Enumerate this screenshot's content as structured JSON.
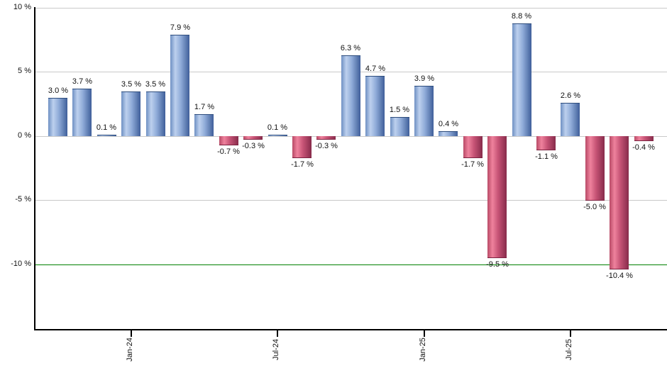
{
  "chart_data": {
    "type": "bar",
    "title": "",
    "xlabel": "",
    "ylabel": "",
    "values": [
      3.0,
      3.7,
      0.1,
      3.5,
      3.5,
      7.9,
      1.7,
      -0.7,
      -0.3,
      0.1,
      -1.7,
      -0.3,
      6.3,
      4.7,
      1.5,
      3.9,
      0.4,
      -1.7,
      -9.5,
      8.8,
      -1.1,
      2.6,
      -5.0,
      -10.4,
      -0.4
    ],
    "bar_labels": [
      "3.0 %",
      "3.7 %",
      "0.1 %",
      "3.5 %",
      "3.5 %",
      "7.9 %",
      "1.7 %",
      "-0.7 %",
      "-0.3 %",
      "0.1 %",
      "-1.7 %",
      "-0.3 %",
      "6.3 %",
      "4.7 %",
      "1.5 %",
      "3.9 %",
      "0.4 %",
      "-1.7 %",
      "-9.5 %",
      "8.8 %",
      "-1.1 %",
      "2.6 %",
      "-5.0 %",
      "-10.4 %",
      "-0.4 %"
    ],
    "x_ticks": [
      {
        "label": "Jan-24",
        "bar_index": 3
      },
      {
        "label": "Jul-24",
        "bar_index": 9
      },
      {
        "label": "Jan-25",
        "bar_index": 15
      },
      {
        "label": "Jul-25",
        "bar_index": 21
      }
    ],
    "y_ticks": [
      {
        "label": "10 %",
        "value": 10
      },
      {
        "label": "5 %",
        "value": 5
      },
      {
        "label": "0 %",
        "value": 0
      },
      {
        "label": "-5 %",
        "value": -5
      },
      {
        "label": "-10 %",
        "value": -10
      }
    ],
    "ylim": [
      -15.1,
      10.6
    ],
    "grid": true,
    "legend": "none",
    "reference_line": {
      "value": -10,
      "color": "#008000"
    },
    "colors": {
      "positive_bar": "#7b9ccb",
      "positive_gradient": [
        "#6e90c3",
        "#bdd0ee",
        "#8fabd8",
        "#3f5f9a"
      ],
      "negative_bar": "#cc5577",
      "negative_gradient": [
        "#b84a66",
        "#ef829d",
        "#c75476",
        "#872b4b"
      ],
      "grid": "#c9c9c9",
      "axis": "#000000",
      "text": "#111111",
      "background": "#ffffff"
    }
  }
}
